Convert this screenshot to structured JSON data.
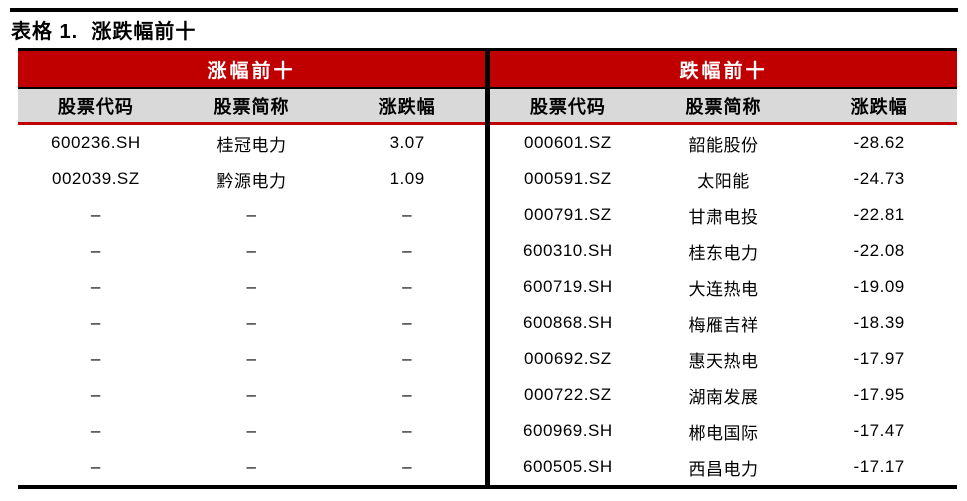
{
  "caption": "表格 1.  涨跌幅前十",
  "colors": {
    "accent_red": "#c00000",
    "header_gray": "#d9d9d9",
    "rule_black": "#000000",
    "band_text": "#ffffff"
  },
  "tables": [
    {
      "group_header": "涨幅前十",
      "columns": [
        "股票代码",
        "股票简称",
        "涨跌幅"
      ],
      "rows": [
        [
          "600236.SH",
          "桂冠电力",
          "3.07"
        ],
        [
          "002039.SZ",
          "黔源电力",
          "1.09"
        ],
        [
          "–",
          "–",
          "–"
        ],
        [
          "–",
          "–",
          "–"
        ],
        [
          "–",
          "–",
          "–"
        ],
        [
          "–",
          "–",
          "–"
        ],
        [
          "–",
          "–",
          "–"
        ],
        [
          "–",
          "–",
          "–"
        ],
        [
          "–",
          "–",
          "–"
        ],
        [
          "–",
          "–",
          "–"
        ]
      ]
    },
    {
      "group_header": "跌幅前十",
      "columns": [
        "股票代码",
        "股票简称",
        "涨跌幅"
      ],
      "rows": [
        [
          "000601.SZ",
          "韶能股份",
          "-28.62"
        ],
        [
          "000591.SZ",
          "太阳能",
          "-24.73"
        ],
        [
          "000791.SZ",
          "甘肃电投",
          "-22.81"
        ],
        [
          "600310.SH",
          "桂东电力",
          "-22.08"
        ],
        [
          "600719.SH",
          "大连热电",
          "-19.09"
        ],
        [
          "600868.SH",
          "梅雁吉祥",
          "-18.39"
        ],
        [
          "000692.SZ",
          "惠天热电",
          "-17.97"
        ],
        [
          "000722.SZ",
          "湖南发展",
          "-17.95"
        ],
        [
          "600969.SH",
          "郴电国际",
          "-17.47"
        ],
        [
          "600505.SH",
          "西昌电力",
          "-17.17"
        ]
      ]
    }
  ]
}
